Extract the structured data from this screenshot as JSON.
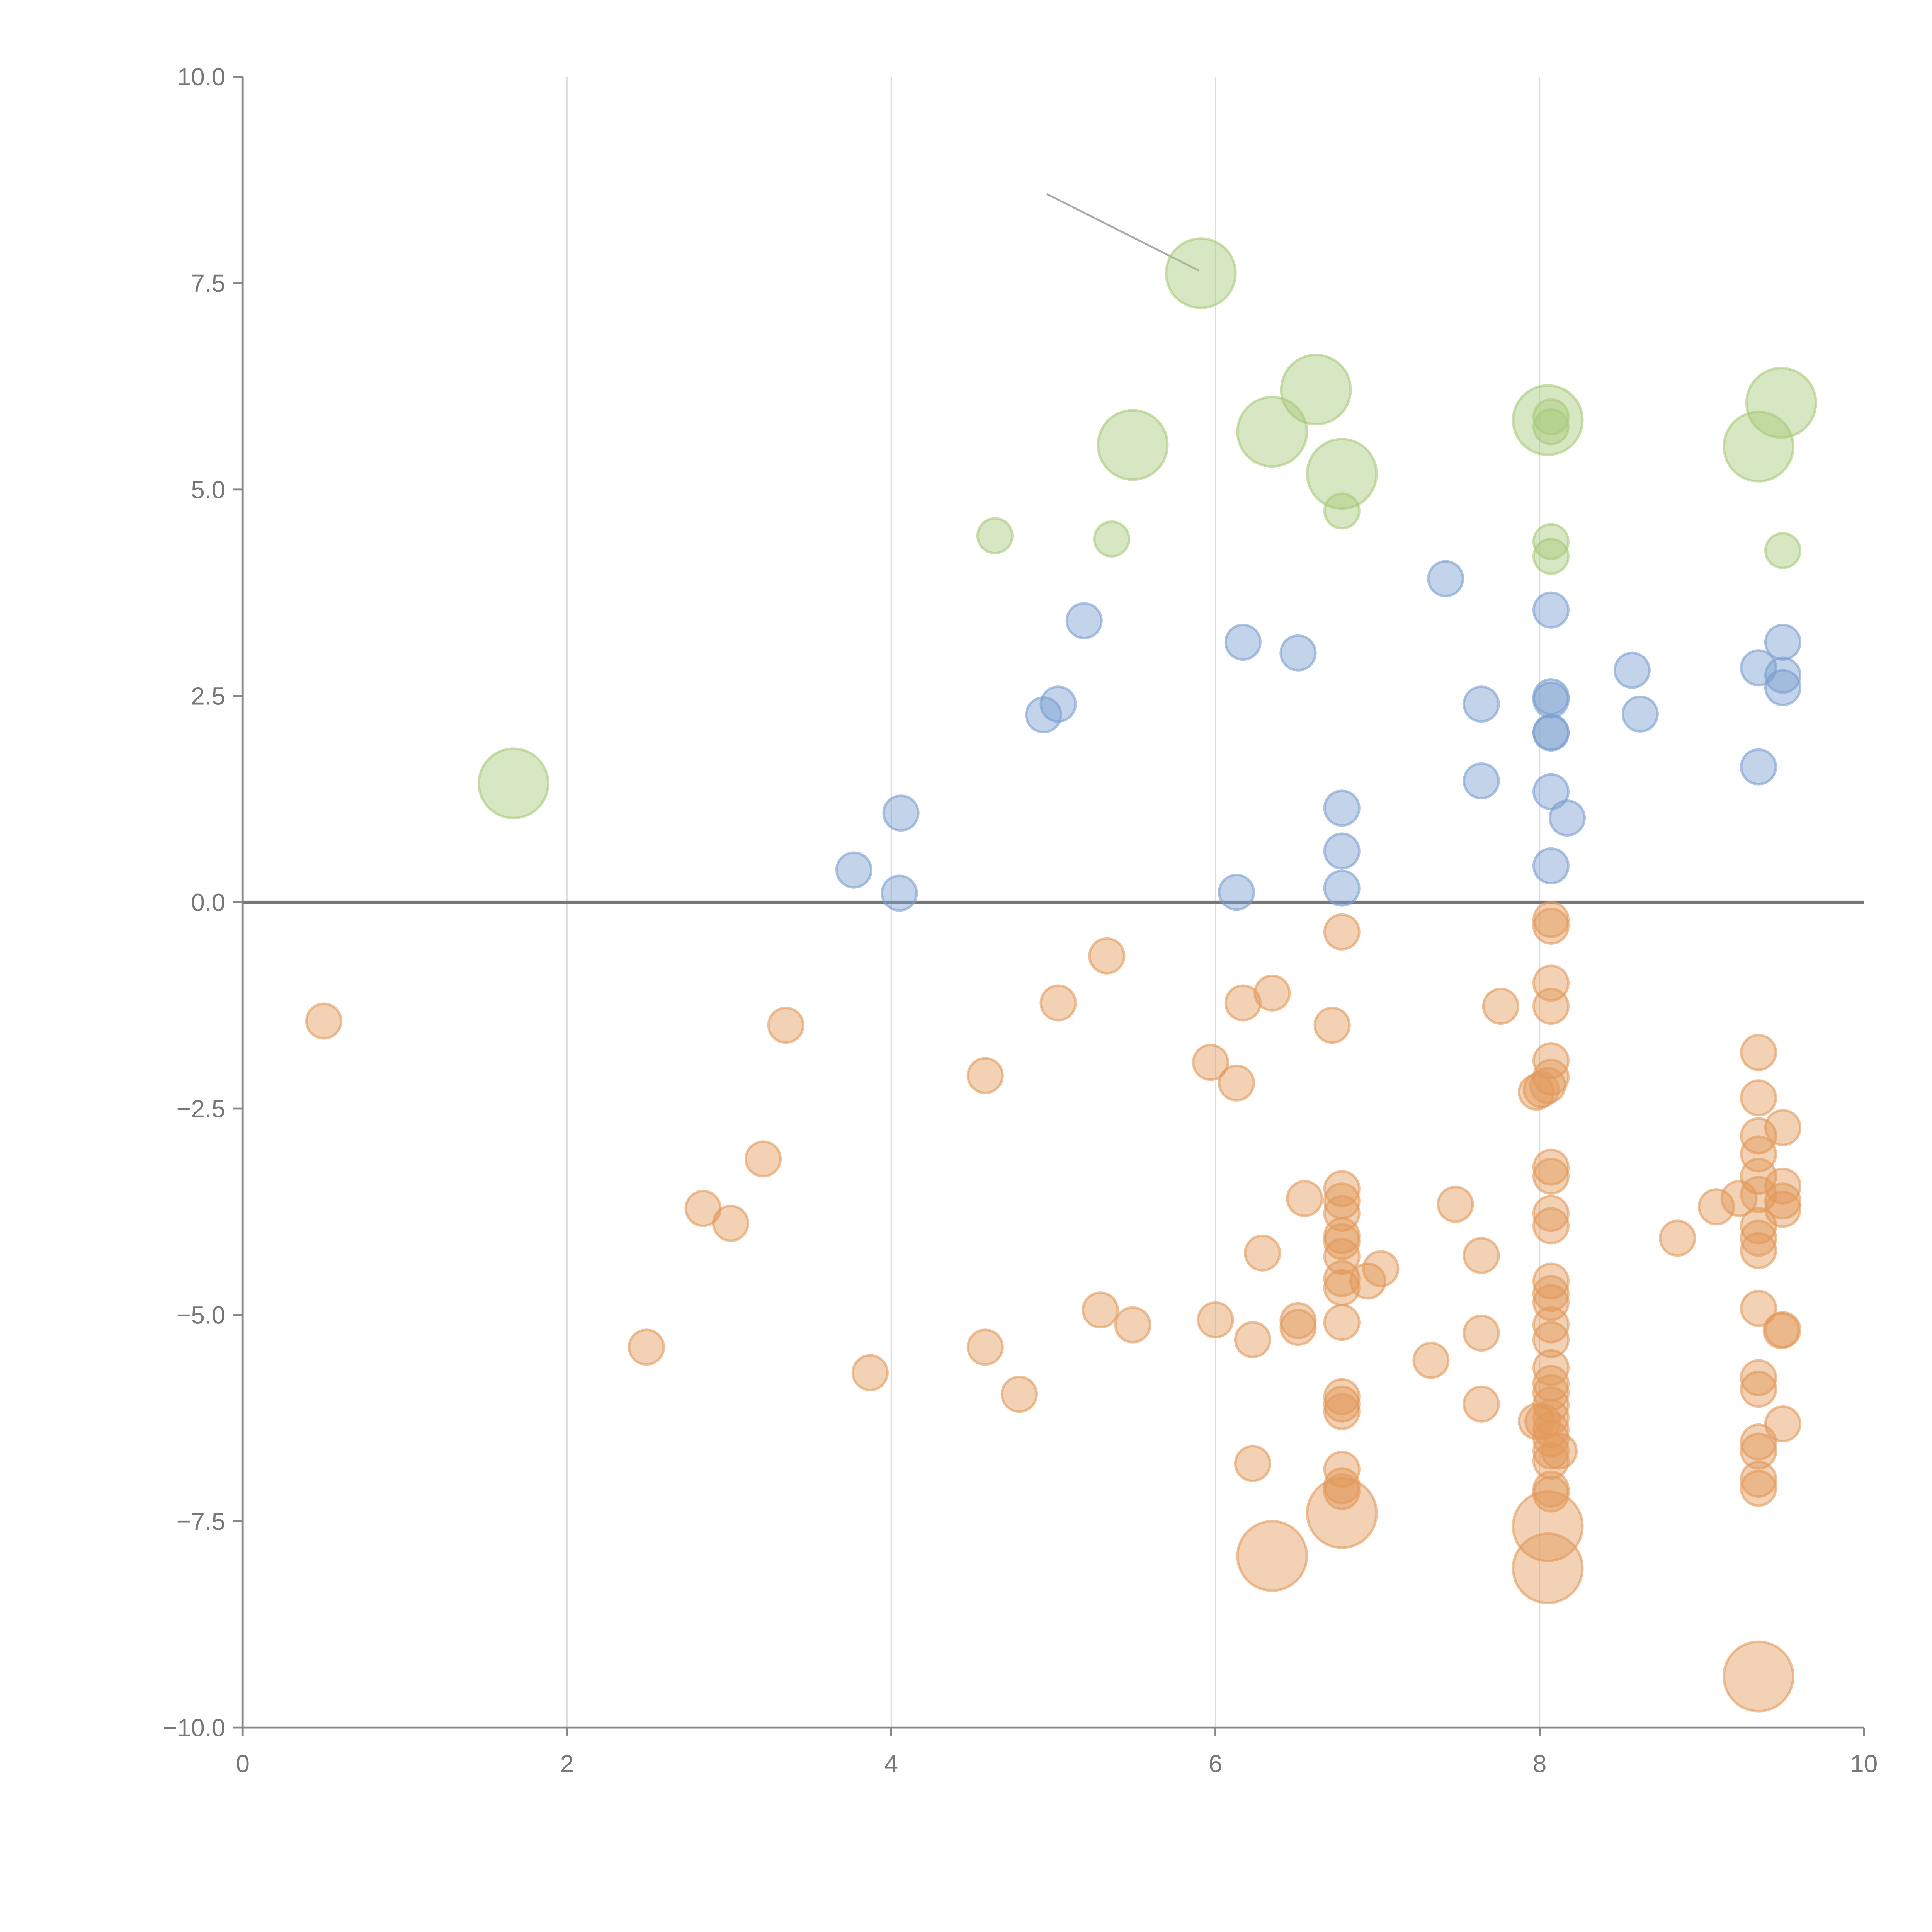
{
  "chart_data": {
    "type": "scatter",
    "title": "",
    "xlabel": "",
    "ylabel": "",
    "xlim": [
      0,
      10
    ],
    "ylim": [
      -10,
      10
    ],
    "x_ticks": [
      "0",
      "2",
      "4",
      "6",
      "8",
      "10"
    ],
    "y_ticks": [
      "10.0",
      "7.5",
      "5.0",
      "2.5",
      "0.0",
      "−2.5",
      "−5.0",
      "−7.5",
      "−10.0"
    ],
    "grid": "vertical",
    "zero_line": 0,
    "annotation_line": [
      [
        4.96,
        8.58
      ],
      [
        5.9,
        7.65
      ]
    ],
    "colors": {
      "green": "#a9c97a",
      "blue": "#7b9fd0",
      "orange": "#e39a5c",
      "axis": "#888888",
      "grid": "#dddddd",
      "zero": "#777777"
    },
    "series": [
      {
        "name": "green",
        "points": [
          [
            5.91,
            7.62,
            2
          ],
          [
            6.62,
            6.21,
            2
          ],
          [
            6.35,
            5.7,
            2
          ],
          [
            5.49,
            5.54,
            2
          ],
          [
            6.78,
            5.19,
            2
          ],
          [
            8.05,
            5.84,
            2
          ],
          [
            8.07,
            5.76,
            1
          ],
          [
            8.07,
            5.88,
            1
          ],
          [
            9.49,
            6.05,
            2
          ],
          [
            9.35,
            5.52,
            2
          ],
          [
            1.67,
            1.44,
            2
          ],
          [
            4.64,
            4.44,
            1
          ],
          [
            5.36,
            4.4,
            1
          ],
          [
            6.78,
            4.74,
            1
          ],
          [
            8.07,
            4.37,
            1
          ],
          [
            8.07,
            4.19,
            1
          ],
          [
            9.5,
            4.26,
            1
          ]
        ]
      },
      {
        "name": "blue",
        "points": [
          [
            7.42,
            3.92,
            1
          ],
          [
            5.19,
            3.41,
            1
          ],
          [
            6.17,
            3.15,
            1
          ],
          [
            6.51,
            3.02,
            1
          ],
          [
            8.07,
            3.54,
            1
          ],
          [
            8.57,
            2.81,
            1
          ],
          [
            8.62,
            2.28,
            1
          ],
          [
            7.64,
            2.4,
            1
          ],
          [
            5.03,
            2.4,
            1
          ],
          [
            4.94,
            2.27,
            1
          ],
          [
            8.07,
            2.49,
            1
          ],
          [
            8.07,
            2.45,
            1
          ],
          [
            8.07,
            2.06,
            1
          ],
          [
            8.07,
            2.05,
            1
          ],
          [
            9.35,
            2.84,
            1
          ],
          [
            9.5,
            3.15,
            1
          ],
          [
            9.5,
            2.75,
            1
          ],
          [
            9.5,
            2.6,
            1
          ],
          [
            9.35,
            1.64,
            1
          ],
          [
            7.64,
            1.47,
            1
          ],
          [
            8.07,
            1.34,
            1
          ],
          [
            8.17,
            1.02,
            1
          ],
          [
            4.06,
            1.08,
            1
          ],
          [
            6.78,
            1.14,
            1
          ],
          [
            6.78,
            0.62,
            1
          ],
          [
            6.78,
            0.17,
            1
          ],
          [
            3.77,
            0.39,
            1
          ],
          [
            4.05,
            0.11,
            1
          ],
          [
            6.13,
            0.12,
            1
          ],
          [
            8.07,
            0.44,
            1
          ]
        ]
      },
      {
        "name": "orange",
        "points": [
          [
            0.5,
            -1.44,
            1
          ],
          [
            3.35,
            -1.49,
            1
          ],
          [
            6.78,
            -0.36,
            1
          ],
          [
            5.33,
            -0.65,
            1
          ],
          [
            6.35,
            -1.1,
            1
          ],
          [
            6.17,
            -1.22,
            1
          ],
          [
            5.03,
            -1.22,
            1
          ],
          [
            6.72,
            -1.49,
            1
          ],
          [
            7.76,
            -1.26,
            1
          ],
          [
            8.07,
            -0.21,
            1
          ],
          [
            8.07,
            -0.29,
            1
          ],
          [
            8.07,
            -0.98,
            1
          ],
          [
            8.07,
            -1.26,
            1
          ],
          [
            5.97,
            -1.94,
            1
          ],
          [
            6.13,
            -2.19,
            1
          ],
          [
            4.58,
            -2.1,
            1
          ],
          [
            8.07,
            -1.92,
            1
          ],
          [
            8.07,
            -2.12,
            1
          ],
          [
            8.05,
            -2.22,
            1
          ],
          [
            7.98,
            -2.3,
            1
          ],
          [
            8.01,
            -2.27,
            1
          ],
          [
            9.35,
            -1.82,
            1
          ],
          [
            9.35,
            -2.37,
            1
          ],
          [
            9.5,
            -2.73,
            1
          ],
          [
            9.35,
            -2.83,
            1
          ],
          [
            9.35,
            -3.05,
            1
          ],
          [
            3.21,
            -3.11,
            1
          ],
          [
            2.84,
            -3.71,
            1
          ],
          [
            3.01,
            -3.89,
            1
          ],
          [
            6.55,
            -3.59,
            1
          ],
          [
            6.78,
            -3.47,
            1
          ],
          [
            6.78,
            -3.62,
            1
          ],
          [
            6.78,
            -3.77,
            1
          ],
          [
            6.78,
            -4.04,
            1
          ],
          [
            6.78,
            -4.11,
            1
          ],
          [
            6.78,
            -4.29,
            1
          ],
          [
            6.78,
            -4.56,
            1
          ],
          [
            6.78,
            -4.67,
            1
          ],
          [
            6.94,
            -4.59,
            1
          ],
          [
            7.02,
            -4.44,
            1
          ],
          [
            6.29,
            -4.25,
            1
          ],
          [
            7.48,
            -3.66,
            1
          ],
          [
            7.64,
            -4.28,
            1
          ],
          [
            8.07,
            -3.21,
            1
          ],
          [
            8.07,
            -3.32,
            1
          ],
          [
            8.07,
            -3.77,
            1
          ],
          [
            8.07,
            -3.92,
            1
          ],
          [
            8.07,
            -4.59,
            1
          ],
          [
            8.07,
            -4.74,
            1
          ],
          [
            8.07,
            -4.85,
            1
          ],
          [
            8.07,
            -5.12,
            1
          ],
          [
            8.07,
            -5.3,
            1
          ],
          [
            8.85,
            -4.07,
            1
          ],
          [
            9.09,
            -3.69,
            1
          ],
          [
            9.23,
            -3.59,
            1
          ],
          [
            9.35,
            -3.32,
            1
          ],
          [
            9.35,
            -3.54,
            1
          ],
          [
            9.35,
            -3.92,
            1
          ],
          [
            9.35,
            -4.07,
            1
          ],
          [
            9.35,
            -4.22,
            1
          ],
          [
            9.5,
            -3.44,
            1
          ],
          [
            9.5,
            -3.62,
            1
          ],
          [
            9.5,
            -3.72,
            1
          ],
          [
            9.35,
            -4.92,
            1
          ],
          [
            9.5,
            -5.18,
            1
          ],
          [
            9.49,
            -5.19,
            1
          ],
          [
            2.49,
            -5.39,
            1
          ],
          [
            3.87,
            -5.7,
            1
          ],
          [
            4.58,
            -5.39,
            1
          ],
          [
            4.79,
            -5.96,
            1
          ],
          [
            5.29,
            -4.94,
            1
          ],
          [
            5.49,
            -5.12,
            1
          ],
          [
            6.0,
            -5.06,
            1
          ],
          [
            6.23,
            -5.3,
            1
          ],
          [
            6.51,
            -5.07,
            1
          ],
          [
            6.51,
            -5.15,
            1
          ],
          [
            6.78,
            -5.09,
            1
          ],
          [
            7.33,
            -5.55,
            1
          ],
          [
            7.64,
            -5.22,
            1
          ],
          [
            7.64,
            -6.08,
            1
          ],
          [
            6.78,
            -5.99,
            1
          ],
          [
            6.78,
            -6.08,
            1
          ],
          [
            6.78,
            -6.17,
            1
          ],
          [
            8.07,
            -5.64,
            1
          ],
          [
            8.07,
            -5.83,
            1
          ],
          [
            8.07,
            -5.94,
            1
          ],
          [
            8.07,
            -6.09,
            1
          ],
          [
            8.07,
            -6.24,
            1
          ],
          [
            8.07,
            -6.39,
            1
          ],
          [
            8.07,
            -6.5,
            1
          ],
          [
            8.02,
            -6.29,
            1
          ],
          [
            7.98,
            -6.29,
            1
          ],
          [
            9.35,
            -5.76,
            1
          ],
          [
            9.35,
            -5.9,
            1
          ],
          [
            9.5,
            -6.32,
            1
          ],
          [
            9.35,
            -6.54,
            1
          ],
          [
            9.35,
            -6.65,
            1
          ],
          [
            6.23,
            -6.8,
            1
          ],
          [
            6.78,
            -6.87,
            1
          ],
          [
            6.78,
            -7.07,
            1
          ],
          [
            6.78,
            -7.14,
            1
          ],
          [
            8.07,
            -6.65,
            1
          ],
          [
            8.07,
            -6.77,
            1
          ],
          [
            8.12,
            -6.65,
            1
          ],
          [
            8.07,
            -7.11,
            1
          ],
          [
            8.07,
            -7.17,
            1
          ],
          [
            9.35,
            -6.99,
            1
          ],
          [
            9.35,
            -7.1,
            1
          ],
          [
            6.78,
            -7.4,
            2
          ],
          [
            6.35,
            -7.92,
            2
          ],
          [
            8.05,
            -7.56,
            2
          ],
          [
            8.05,
            -8.07,
            2
          ],
          [
            9.35,
            -9.38,
            2
          ]
        ]
      }
    ]
  }
}
